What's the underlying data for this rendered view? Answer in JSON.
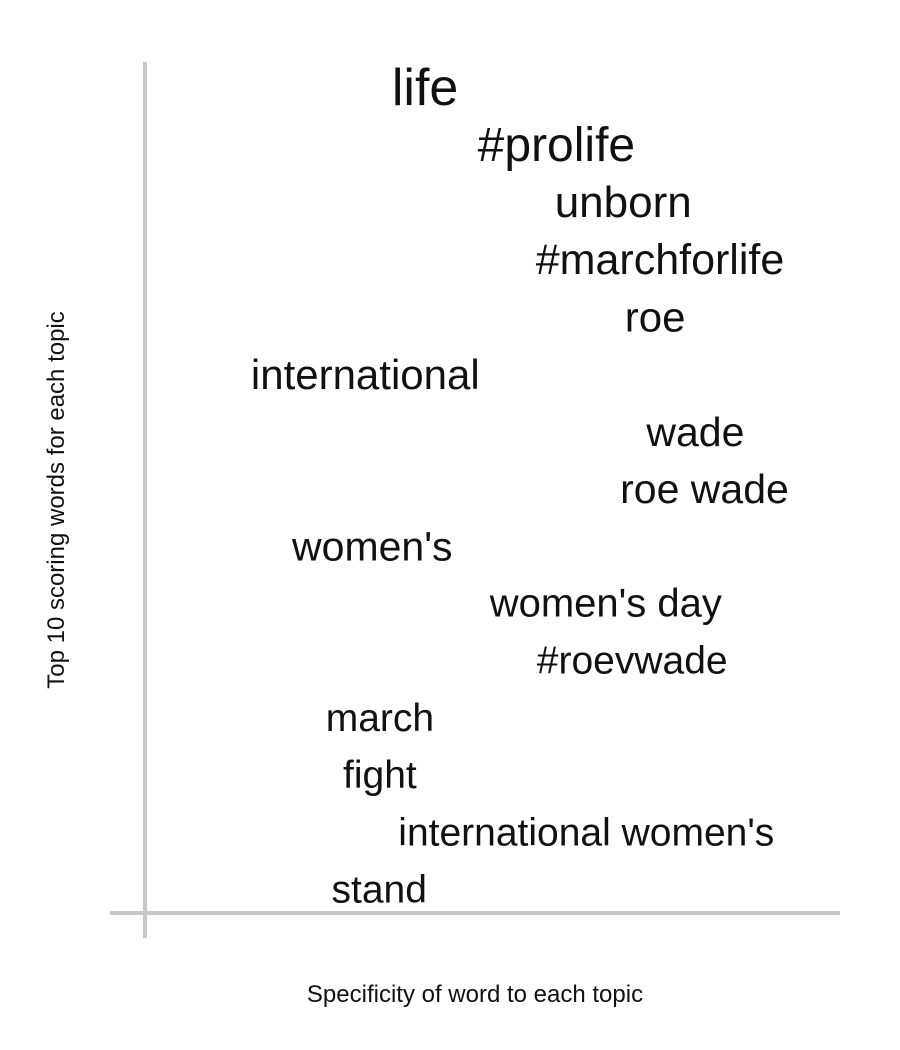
{
  "chart_data": {
    "type": "scatter",
    "title": "",
    "xlabel": "Specificity of word to each topic",
    "ylabel": "Top 10 scoring words for each topic",
    "x_range": [
      0,
      100
    ],
    "grid": false,
    "legend": "none",
    "axis_color": "#c8c8c8",
    "text_color": "#111111",
    "points": [
      {
        "word": "life",
        "specificity": 40.3,
        "rank": 1,
        "weight": 1.0
      },
      {
        "word": "#prolife",
        "specificity": 59.2,
        "rank": 2,
        "weight": 0.9
      },
      {
        "word": "unborn",
        "specificity": 68.8,
        "rank": 3,
        "weight": 0.78
      },
      {
        "word": "#marchforlife",
        "specificity": 74.1,
        "rank": 4,
        "weight": 0.75
      },
      {
        "word": "roe",
        "specificity": 73.4,
        "rank": 5,
        "weight": 0.74
      },
      {
        "word": "international",
        "specificity": 31.7,
        "rank": 6,
        "weight": 0.73
      },
      {
        "word": "wade",
        "specificity": 79.2,
        "rank": 7,
        "weight": 0.72
      },
      {
        "word": "roe wade",
        "specificity": 80.5,
        "rank": 8,
        "weight": 0.7
      },
      {
        "word": "women's",
        "specificity": 32.7,
        "rank": 9,
        "weight": 0.7
      },
      {
        "word": "women's day",
        "specificity": 66.3,
        "rank": 10,
        "weight": 0.68
      },
      {
        "word": "#roevwade",
        "specificity": 70.1,
        "rank": 11,
        "weight": 0.67
      },
      {
        "word": "march",
        "specificity": 33.8,
        "rank": 12,
        "weight": 0.67
      },
      {
        "word": "fight",
        "specificity": 33.8,
        "rank": 13,
        "weight": 0.67
      },
      {
        "word": "international women's",
        "specificity": 63.5,
        "rank": 14,
        "weight": 0.66
      },
      {
        "word": "stand",
        "specificity": 33.7,
        "rank": 15,
        "weight": 0.66
      }
    ]
  }
}
